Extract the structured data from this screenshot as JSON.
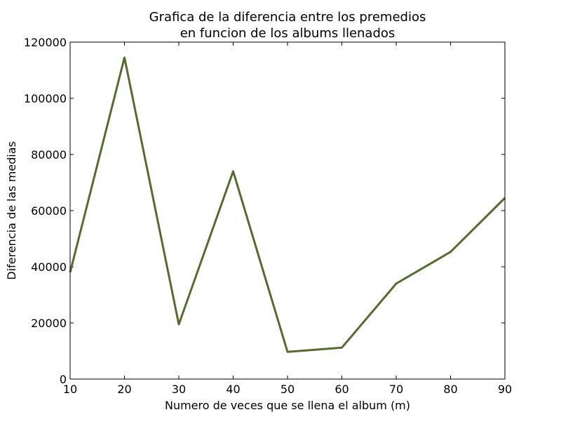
{
  "chart_data": {
    "type": "line",
    "title": [
      "Grafica de la diferencia entre los premedios",
      "en funcion de los albums llenados"
    ],
    "xlabel": "Numero de veces que se llena el album (m)",
    "ylabel": "Diferencia de las medias",
    "xlim": [
      10,
      90
    ],
    "ylim": [
      0,
      120000
    ],
    "x_ticks": [
      10,
      20,
      30,
      40,
      50,
      60,
      70,
      80,
      90
    ],
    "y_ticks": [
      0,
      20000,
      40000,
      60000,
      80000,
      100000,
      120000
    ],
    "x_tick_labels": [
      "10",
      "20",
      "30",
      "40",
      "50",
      "60",
      "70",
      "80",
      "90"
    ],
    "y_tick_labels": [
      "0",
      "20000",
      "40000",
      "60000",
      "80000",
      "100000",
      "120000"
    ],
    "grid": false,
    "series": [
      {
        "color": "#556b2f",
        "x": [
          10,
          20,
          30,
          40,
          50,
          60,
          70,
          80,
          90
        ],
        "y": [
          38000,
          114500,
          19500,
          74000,
          9700,
          11200,
          34000,
          45300,
          64500
        ]
      }
    ]
  }
}
